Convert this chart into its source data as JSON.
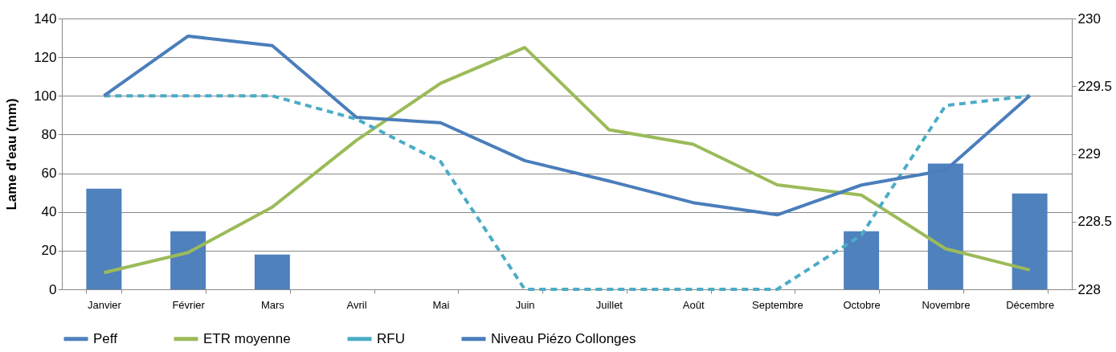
{
  "chart_data": {
    "type": "bar",
    "ylabel": "Lame d'eau (mm)",
    "categories": [
      "Janvier",
      "Février",
      "Mars",
      "Avril",
      "Mai",
      "Juin",
      "Juillet",
      "Août",
      "Septembre",
      "Octobre",
      "Novembre",
      "Décembre"
    ],
    "series": [
      {
        "name": "Peff",
        "color": "#4f81bd",
        "values": [
          52,
          30,
          18,
          null,
          null,
          null,
          null,
          null,
          null,
          30,
          65,
          49.5
        ]
      },
      {
        "name": "ETR moyenne",
        "type": "line",
        "color": "#9bbb59",
        "line_style": "solid",
        "values": [
          8.6,
          19,
          42.5,
          77,
          106.5,
          125,
          82.5,
          75,
          54,
          48.7,
          21,
          10
        ]
      },
      {
        "name": "RFU",
        "type": "line",
        "color": "#4bacc6",
        "line_style": "dashed",
        "values": [
          100,
          100,
          100,
          88,
          66,
          0,
          0,
          0,
          0,
          28,
          95,
          100
        ]
      },
      {
        "name": "Niveau Piézo Collonges",
        "type": "line",
        "axis": "y2",
        "color": "#4a7ebb",
        "line_style": "solid",
        "values": [
          229.43,
          229.87,
          229.8,
          229.27,
          229.23,
          228.95,
          228.8,
          228.64,
          228.55,
          228.77,
          228.88,
          229.43
        ]
      }
    ],
    "ylim": [
      0,
      140
    ],
    "yticks": [
      0,
      20,
      40,
      60,
      80,
      100,
      120,
      140
    ],
    "y2lim": [
      228,
      230
    ],
    "y2ticks": [
      228,
      228.5,
      229,
      229.5,
      230
    ],
    "grid": "y",
    "legend": "bottom"
  }
}
